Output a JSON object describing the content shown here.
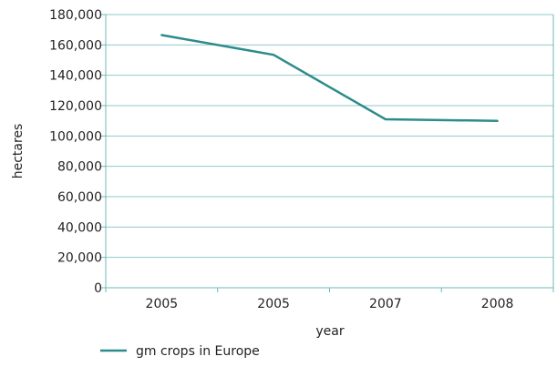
{
  "chart_data": {
    "type": "line",
    "title": "",
    "xlabel": "year",
    "ylabel": "hectares",
    "categories": [
      "2005",
      "2005",
      "2007",
      "2008"
    ],
    "series": [
      {
        "name": "gm crops in Europe",
        "values": [
          166500,
          153500,
          111000,
          110000
        ]
      }
    ],
    "ylim": [
      0,
      180000
    ],
    "yticks": [
      "0",
      "20,000",
      "40,000",
      "60,000",
      "80,000",
      "100,000",
      "120,000",
      "140,000",
      "160,000",
      "180,000"
    ],
    "grid": true,
    "legend": "bottom",
    "colors": {
      "series": "#2e8b8b",
      "grid": "#8fc9c9",
      "axis": "#6cb8b8",
      "text": "#231f20"
    }
  }
}
